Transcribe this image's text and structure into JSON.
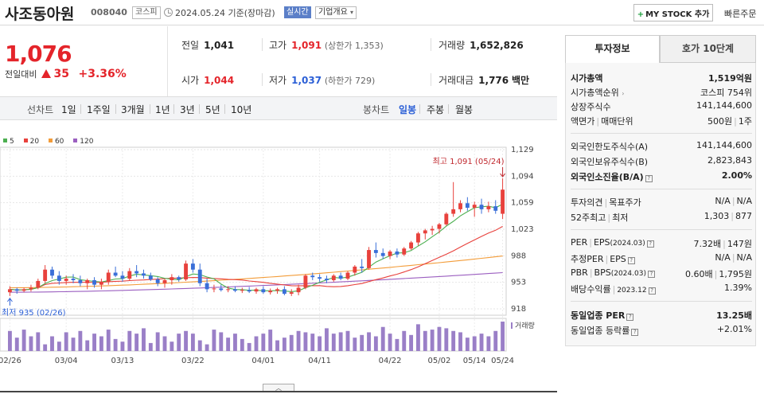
{
  "header": {
    "company": "사조동아원",
    "code": "008040",
    "market": "코스피",
    "date": "2024.05.24 기준(장마감)",
    "realtime": "실시간",
    "corp_info": "기업개요",
    "mystock": "MY STOCK 추가",
    "quick_order": "빠른주문"
  },
  "price": {
    "current": "1,076",
    "diff_label": "전일대비",
    "diff": "35",
    "pct": "+3.36%"
  },
  "stats": {
    "prev_label": "전일",
    "prev": "1,041",
    "high_label": "고가",
    "high": "1,091",
    "upper_limit": "(상한가 1,353)",
    "volume_label": "거래량",
    "volume": "1,652,826",
    "open_label": "시가",
    "open": "1,044",
    "low_label": "저가",
    "low": "1,037",
    "lower_limit": "(하한가 729)",
    "amount_label": "거래대금",
    "amount": "1,776",
    "amount_unit": "백만"
  },
  "controls": {
    "line_chart": "선차트",
    "periods": [
      "1일",
      "1주일",
      "3개월",
      "1년",
      "3년",
      "5년",
      "10년"
    ],
    "candle_chart": "봉차트",
    "candle_types": [
      "일봉",
      "주봉",
      "월봉"
    ]
  },
  "chart_data": {
    "type": "candlestick",
    "legend": [
      {
        "name": "5",
        "color": "#4caf50"
      },
      {
        "name": "20",
        "color": "#e8413c"
      },
      {
        "name": "60",
        "color": "#f39c39"
      },
      {
        "name": "120",
        "color": "#9b5fc0"
      }
    ],
    "y_ticks": [
      "1,129",
      "1,094",
      "1,059",
      "1,023",
      "988",
      "953",
      "918"
    ],
    "ylim": [
      918,
      1129
    ],
    "x_ticks": [
      "02/26",
      "03/04",
      "03/13",
      "03/22",
      "04/01",
      "04/11",
      "04/22",
      "05/02",
      "05/14",
      "05/24"
    ],
    "max_annotation": "최고 1,091 (05/24)",
    "min_annotation": "최저 935 (02/26)",
    "volume_label": "거래량",
    "candles": [
      [
        940,
        948,
        935,
        944
      ],
      [
        944,
        946,
        938,
        942
      ],
      [
        942,
        946,
        940,
        944
      ],
      [
        944,
        950,
        941,
        946
      ],
      [
        946,
        958,
        944,
        955
      ],
      [
        955,
        976,
        952,
        970
      ],
      [
        970,
        974,
        958,
        962
      ],
      [
        962,
        968,
        950,
        955
      ],
      [
        955,
        962,
        950,
        958
      ],
      [
        958,
        964,
        952,
        956
      ],
      [
        956,
        962,
        948,
        952
      ],
      [
        952,
        958,
        944,
        956
      ],
      [
        956,
        960,
        946,
        950
      ],
      [
        950,
        958,
        944,
        954
      ],
      [
        954,
        970,
        950,
        966
      ],
      [
        966,
        974,
        960,
        962
      ],
      [
        962,
        968,
        954,
        958
      ],
      [
        958,
        972,
        955,
        968
      ],
      [
        968,
        976,
        960,
        965
      ],
      [
        965,
        970,
        958,
        962
      ],
      [
        962,
        966,
        955,
        957
      ],
      [
        957,
        960,
        948,
        952
      ],
      [
        952,
        958,
        946,
        956
      ],
      [
        956,
        964,
        950,
        960
      ],
      [
        960,
        962,
        954,
        957
      ],
      [
        957,
        982,
        955,
        978
      ],
      [
        978,
        984,
        966,
        970
      ],
      [
        970,
        978,
        948,
        952
      ],
      [
        952,
        958,
        940,
        944
      ],
      [
        944,
        950,
        940,
        945
      ],
      [
        945,
        950,
        941,
        943
      ],
      [
        943,
        948,
        940,
        944
      ],
      [
        944,
        948,
        940,
        942
      ],
      [
        942,
        946,
        939,
        943
      ],
      [
        943,
        947,
        939,
        941
      ],
      [
        941,
        946,
        938,
        944
      ],
      [
        944,
        948,
        938,
        940
      ],
      [
        940,
        945,
        937,
        942
      ],
      [
        942,
        946,
        938,
        944
      ],
      [
        944,
        948,
        936,
        938
      ],
      [
        938,
        944,
        935,
        940
      ],
      [
        940,
        950,
        936,
        946
      ],
      [
        946,
        964,
        944,
        962
      ],
      [
        962,
        966,
        956,
        960
      ],
      [
        960,
        964,
        954,
        958
      ],
      [
        958,
        962,
        952,
        956
      ],
      [
        956,
        964,
        954,
        962
      ],
      [
        962,
        966,
        956,
        958
      ],
      [
        958,
        968,
        956,
        966
      ],
      [
        966,
        976,
        962,
        974
      ],
      [
        974,
        984,
        966,
        972
      ],
      [
        972,
        1000,
        970,
        996
      ],
      [
        996,
        1006,
        986,
        992
      ],
      [
        992,
        998,
        984,
        988
      ],
      [
        988,
        996,
        984,
        994
      ],
      [
        994,
        998,
        986,
        990
      ],
      [
        990,
        1000,
        988,
        998
      ],
      [
        998,
        1008,
        996,
        1006
      ],
      [
        1006,
        1020,
        1002,
        1018
      ],
      [
        1018,
        1024,
        1010,
        1022
      ],
      [
        1022,
        1028,
        1016,
        1024
      ],
      [
        1024,
        1032,
        1018,
        1030
      ],
      [
        1030,
        1046,
        1028,
        1044
      ],
      [
        1044,
        1086,
        1040,
        1050
      ],
      [
        1050,
        1062,
        1046,
        1058
      ],
      [
        1058,
        1066,
        1048,
        1052
      ],
      [
        1052,
        1060,
        1040,
        1056
      ],
      [
        1056,
        1064,
        1044,
        1050
      ],
      [
        1050,
        1060,
        1046,
        1054
      ],
      [
        1054,
        1062,
        1044,
        1048
      ],
      [
        1044,
        1091,
        1037,
        1076
      ]
    ],
    "volume": [
      30,
      20,
      32,
      22,
      28,
      10,
      22,
      14,
      28,
      20,
      30,
      16,
      26,
      22,
      32,
      18,
      14,
      30,
      26,
      34,
      12,
      28,
      22,
      14,
      26,
      30,
      26,
      16,
      10,
      32,
      28,
      20,
      26,
      18,
      12,
      22,
      26,
      32,
      16,
      20,
      24,
      30,
      28,
      26,
      22,
      34,
      26,
      28,
      30,
      20,
      24,
      28,
      22,
      36,
      26,
      18,
      30,
      24,
      40,
      30,
      32,
      36,
      34,
      30,
      28,
      20,
      22,
      26,
      22,
      30,
      44
    ],
    "ma5_end": 1054,
    "ma20_end": 1032,
    "ma60_end": 988,
    "ma120_end": 966
  },
  "panel": {
    "tab_active": "투자정보",
    "tab_other": "호가 10단계",
    "rows": {
      "market_cap_label": "시가총액",
      "market_cap": "1,519억원",
      "rank_label": "시가총액순위",
      "rank": "코스피 754위",
      "shares_label": "상장주식수",
      "shares": "141,144,600",
      "face_label": "액면가",
      "trade_unit_label": "매매단위",
      "face": "500원",
      "trade_unit": "1주",
      "foreign_limit_label": "외국인한도주식수(A)",
      "foreign_limit": "141,144,600",
      "foreign_hold_label": "외국인보유주식수(B)",
      "foreign_hold": "2,823,843",
      "foreign_ratio_label": "외국인소진율(B/A)",
      "foreign_ratio": "2.00%",
      "opinion_label": "투자의견",
      "target_label": "목표주가",
      "opinion": "N/A",
      "target": "N/A",
      "wk52_label": "52주최고",
      "wk52_low_label": "최저",
      "wk52_high": "1,303",
      "wk52_low": "877",
      "per_label": "PER",
      "eps_label": "EPS",
      "eps_year": "(2024.03)",
      "per": "7.32배",
      "eps": "147원",
      "est_per_label": "추정PER",
      "est_eps_label": "EPS",
      "est_per": "N/A",
      "est_eps": "N/A",
      "pbr_label": "PBR",
      "bps_label": "BPS",
      "bps_year": "(2024.03)",
      "pbr": "0.60배",
      "bps": "1,795원",
      "div_label": "배당수익률",
      "div_year": "2023.12",
      "div": "1.39%",
      "ind_per_label": "동일업종 PER",
      "ind_per": "13.25배",
      "ind_rate_label": "동일업종 등락률",
      "ind_rate": "+2.01%"
    }
  }
}
